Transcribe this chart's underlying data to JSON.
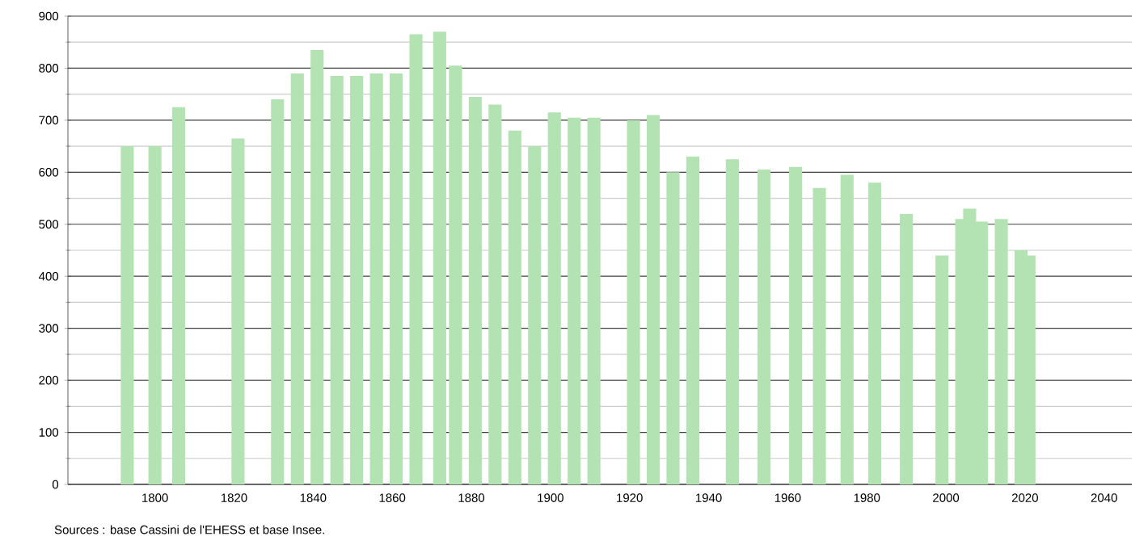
{
  "chart_data": {
    "type": "bar",
    "color": "#b3e3b3",
    "x": [
      1793,
      1800,
      1806,
      1821,
      1831,
      1836,
      1841,
      1846,
      1851,
      1856,
      1861,
      1866,
      1872,
      1876,
      1881,
      1886,
      1891,
      1896,
      1901,
      1906,
      1911,
      1921,
      1926,
      1931,
      1936,
      1946,
      1954,
      1962,
      1968,
      1975,
      1982,
      1990,
      1999,
      2004,
      2006,
      2009,
      2014,
      2019,
      2021
    ],
    "values": [
      650,
      650,
      725,
      665,
      740,
      790,
      835,
      785,
      785,
      790,
      790,
      865,
      870,
      805,
      745,
      730,
      680,
      650,
      715,
      705,
      705,
      700,
      710,
      600,
      630,
      625,
      605,
      610,
      570,
      595,
      580,
      520,
      440,
      510,
      530,
      505,
      510,
      450,
      440
    ],
    "xlim": [
      1778,
      2047
    ],
    "ylim": [
      0,
      900
    ],
    "xticks": [
      1800,
      1820,
      1840,
      1860,
      1880,
      1900,
      1920,
      1940,
      1960,
      1980,
      2000,
      2020,
      2040
    ],
    "yticks": [
      0,
      100,
      200,
      300,
      400,
      500,
      600,
      700,
      800,
      900
    ],
    "grid": "y",
    "annotations": [
      "Sources : base Cassini de l'EHESS et base Insee."
    ]
  }
}
